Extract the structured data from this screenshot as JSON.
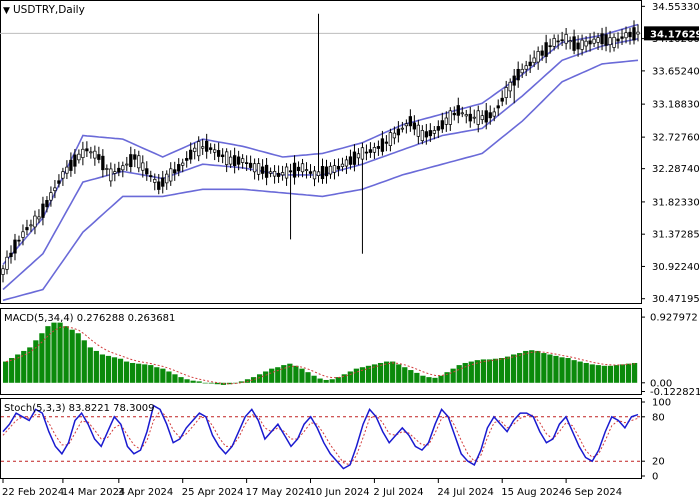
{
  "chart_data": {
    "type": "line",
    "symbol_label": "USDTRY,Daily",
    "current_price_label": "34.17629",
    "current_price": 34.17629,
    "main": {
      "price_ticks": [
        "34.55330",
        "34.10260",
        "33.65240",
        "33.18830",
        "32.72760",
        "32.28740",
        "31.82330",
        "31.37285",
        "30.92240",
        "30.47195"
      ],
      "price_tick_values": [
        34.5533,
        34.1026,
        33.6524,
        33.1883,
        32.7276,
        32.2874,
        31.8233,
        31.37285,
        30.9224,
        30.47195
      ],
      "ylim": [
        30.44,
        34.6
      ],
      "candles": {
        "description": "daily OHLC, Feb 22 2024 – Sep 18 2024",
        "close_path": [
          [
            0,
            30.85
          ],
          [
            3,
            31.2
          ],
          [
            6,
            31.45
          ],
          [
            9,
            31.6
          ],
          [
            12,
            31.9
          ],
          [
            15,
            32.2
          ],
          [
            18,
            32.4
          ],
          [
            21,
            32.55
          ],
          [
            24,
            32.45
          ],
          [
            27,
            32.2
          ],
          [
            30,
            32.3
          ],
          [
            33,
            32.45
          ],
          [
            36,
            32.25
          ],
          [
            39,
            32.05
          ],
          [
            42,
            32.2
          ],
          [
            45,
            32.35
          ],
          [
            48,
            32.55
          ],
          [
            51,
            32.6
          ],
          [
            54,
            32.5
          ],
          [
            57,
            32.4
          ],
          [
            60,
            32.4
          ],
          [
            63,
            32.3
          ],
          [
            66,
            32.25
          ],
          [
            69,
            32.2
          ],
          [
            72,
            32.25
          ],
          [
            75,
            32.3
          ],
          [
            78,
            32.2
          ],
          [
            81,
            32.25
          ],
          [
            84,
            32.3
          ],
          [
            87,
            32.4
          ],
          [
            90,
            32.5
          ],
          [
            93,
            32.55
          ],
          [
            96,
            32.65
          ],
          [
            99,
            32.8
          ],
          [
            102,
            32.95
          ],
          [
            105,
            32.75
          ],
          [
            108,
            32.8
          ],
          [
            111,
            32.95
          ],
          [
            114,
            33.1
          ],
          [
            117,
            33.0
          ],
          [
            120,
            33.0
          ],
          [
            123,
            33.05
          ],
          [
            126,
            33.35
          ],
          [
            129,
            33.6
          ],
          [
            132,
            33.75
          ],
          [
            135,
            33.9
          ],
          [
            138,
            34.05
          ],
          [
            141,
            34.1
          ],
          [
            144,
            34.0
          ],
          [
            147,
            34.05
          ],
          [
            150,
            34.1
          ],
          [
            153,
            34.05
          ],
          [
            156,
            34.15
          ],
          [
            159,
            34.18
          ]
        ],
        "wick_spikes": [
          [
            79,
            34.45,
            "high"
          ],
          [
            72,
            31.3,
            "low"
          ],
          [
            90,
            31.1,
            "low"
          ],
          [
            128,
            33.2,
            "low"
          ]
        ]
      },
      "bollinger": {
        "period": 20,
        "upper": [
          [
            0,
            30.95
          ],
          [
            10,
            31.6
          ],
          [
            20,
            32.75
          ],
          [
            30,
            32.7
          ],
          [
            40,
            32.45
          ],
          [
            50,
            32.7
          ],
          [
            60,
            32.6
          ],
          [
            70,
            32.45
          ],
          [
            80,
            32.5
          ],
          [
            90,
            32.65
          ],
          [
            100,
            32.9
          ],
          [
            110,
            33.05
          ],
          [
            120,
            33.2
          ],
          [
            130,
            33.6
          ],
          [
            140,
            34.05
          ],
          [
            150,
            34.15
          ],
          [
            159,
            34.3
          ]
        ],
        "middle": [
          [
            0,
            30.6
          ],
          [
            10,
            31.1
          ],
          [
            20,
            32.1
          ],
          [
            30,
            32.25
          ],
          [
            40,
            32.15
          ],
          [
            50,
            32.35
          ],
          [
            60,
            32.3
          ],
          [
            70,
            32.2
          ],
          [
            80,
            32.2
          ],
          [
            90,
            32.35
          ],
          [
            100,
            32.55
          ],
          [
            110,
            32.75
          ],
          [
            120,
            32.85
          ],
          [
            130,
            33.3
          ],
          [
            140,
            33.8
          ],
          [
            150,
            34.0
          ],
          [
            159,
            34.1
          ]
        ],
        "lower": [
          [
            0,
            30.45
          ],
          [
            10,
            30.6
          ],
          [
            20,
            31.4
          ],
          [
            30,
            31.9
          ],
          [
            40,
            31.9
          ],
          [
            50,
            32.0
          ],
          [
            60,
            32.0
          ],
          [
            70,
            31.95
          ],
          [
            80,
            31.9
          ],
          [
            90,
            32.0
          ],
          [
            100,
            32.2
          ],
          [
            110,
            32.35
          ],
          [
            120,
            32.5
          ],
          [
            130,
            32.95
          ],
          [
            140,
            33.5
          ],
          [
            150,
            33.75
          ],
          [
            159,
            33.8
          ]
        ]
      }
    },
    "macd": {
      "label": "MACD(5,34,4) 0.276288 0.263681",
      "params": "5,34,4",
      "value": 0.276288,
      "signal": 0.263681,
      "ticks": [
        "0.927972",
        "0.00",
        "-0.122821"
      ],
      "tick_values": [
        0.927972,
        0.0,
        -0.122821
      ],
      "ylim": [
        -0.13,
        1.0
      ],
      "histogram": [
        0.3,
        0.35,
        0.4,
        0.45,
        0.5,
        0.6,
        0.7,
        0.8,
        0.85,
        0.85,
        0.8,
        0.75,
        0.7,
        0.6,
        0.5,
        0.45,
        0.4,
        0.38,
        0.36,
        0.34,
        0.3,
        0.28,
        0.27,
        0.26,
        0.25,
        0.22,
        0.2,
        0.16,
        0.12,
        0.08,
        0.05,
        0.03,
        0.02,
        0.0,
        -0.01,
        -0.02,
        -0.03,
        -0.02,
        0.0,
        0.02,
        0.05,
        0.08,
        0.12,
        0.16,
        0.2,
        0.22,
        0.25,
        0.27,
        0.24,
        0.2,
        0.15,
        0.1,
        0.06,
        0.04,
        0.05,
        0.08,
        0.12,
        0.16,
        0.2,
        0.22,
        0.24,
        0.26,
        0.28,
        0.3,
        0.3,
        0.26,
        0.22,
        0.18,
        0.14,
        0.1,
        0.08,
        0.07,
        0.1,
        0.15,
        0.2,
        0.25,
        0.28,
        0.3,
        0.32,
        0.33,
        0.33,
        0.34,
        0.35,
        0.37,
        0.4,
        0.42,
        0.45,
        0.46,
        0.45,
        0.42,
        0.4,
        0.38,
        0.36,
        0.35,
        0.32,
        0.3,
        0.28,
        0.26,
        0.25,
        0.24,
        0.24,
        0.25,
        0.26,
        0.27,
        0.28
      ]
    },
    "stochastic": {
      "label": "Stoch(5,3,3) 83.8221 78.3009",
      "params": "5,3,3",
      "k_value": 83.8221,
      "d_value": 78.3009,
      "ticks": [
        "100",
        "80",
        "20",
        "0"
      ],
      "tick_values": [
        100,
        80,
        20,
        0
      ],
      "levels": [
        80,
        20
      ],
      "ylim": [
        0,
        100
      ],
      "k": [
        60,
        70,
        85,
        80,
        75,
        90,
        85,
        60,
        40,
        30,
        45,
        75,
        85,
        70,
        50,
        40,
        60,
        80,
        70,
        40,
        30,
        35,
        60,
        95,
        90,
        70,
        45,
        50,
        65,
        75,
        85,
        80,
        55,
        40,
        30,
        40,
        60,
        80,
        90,
        75,
        50,
        60,
        70,
        55,
        40,
        50,
        70,
        80,
        65,
        45,
        30,
        20,
        10,
        15,
        40,
        70,
        90,
        80,
        60,
        45,
        55,
        65,
        55,
        40,
        35,
        45,
        70,
        90,
        80,
        55,
        30,
        20,
        15,
        35,
        65,
        80,
        70,
        60,
        75,
        85,
        85,
        80,
        60,
        45,
        50,
        70,
        80,
        60,
        40,
        25,
        20,
        35,
        60,
        80,
        75,
        65,
        80,
        83
      ],
      "d": [
        55,
        65,
        75,
        80,
        78,
        83,
        83,
        72,
        55,
        42,
        42,
        58,
        74,
        73,
        62,
        50,
        52,
        65,
        70,
        55,
        42,
        36,
        48,
        75,
        88,
        80,
        62,
        52,
        57,
        67,
        78,
        80,
        68,
        52,
        40,
        40,
        52,
        70,
        83,
        80,
        65,
        60,
        65,
        60,
        50,
        50,
        60,
        72,
        70,
        57,
        42,
        30,
        18,
        15,
        28,
        52,
        78,
        82,
        72,
        57,
        55,
        60,
        58,
        50,
        42,
        42,
        58,
        78,
        82,
        68,
        48,
        30,
        20,
        28,
        52,
        72,
        75,
        65,
        70,
        78,
        82,
        82,
        72,
        57,
        50,
        60,
        72,
        68,
        52,
        35,
        25,
        30,
        48,
        68,
        75,
        72,
        75,
        78
      ]
    },
    "x_axis": {
      "labels": [
        "22 Feb 2024",
        "14 Mar 2024",
        "3 Apr 2024",
        "25 Apr 2024",
        "17 May 2024",
        "10 Jun 2024",
        "2 Jul 2024",
        "24 Jul 2024",
        "15 Aug 2024",
        "6 Sep 2024"
      ],
      "label_indices": [
        0,
        15,
        29,
        45,
        61,
        77,
        93,
        109,
        125,
        141
      ]
    },
    "colors": {
      "bollinger": "#6a6ad8",
      "candle": "#000000",
      "macd_histogram": "#0b8a0b",
      "macd_signal": "#d23c3c",
      "stoch_k": "#1a1ad0",
      "stoch_d": "#d23c3c",
      "level_line": "#c02020",
      "grid": "#c0c0c0"
    }
  }
}
